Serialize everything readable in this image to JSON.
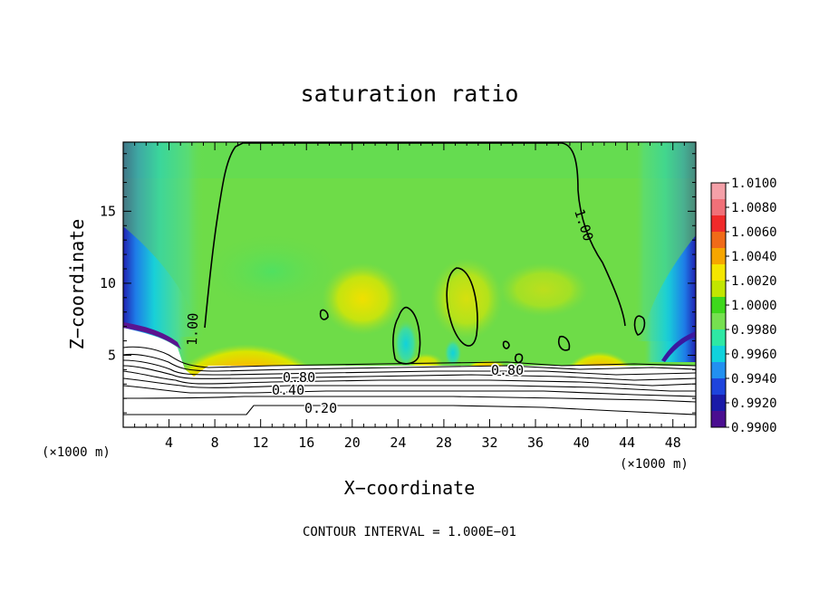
{
  "chart_data": {
    "type": "heatmap",
    "title": "saturation ratio",
    "xlabel": "X−coordinate",
    "ylabel": "Z−coordinate",
    "x_unit_label": "(×1000 m)",
    "xlim": [
      0,
      50
    ],
    "ylim": [
      0,
      19.8
    ],
    "x_ticks": [
      "4",
      "8",
      "12",
      "16",
      "20",
      "24",
      "28",
      "32",
      "36",
      "40",
      "44",
      "48"
    ],
    "y_ticks": [
      "5",
      "10",
      "15"
    ],
    "footer": "CONTOUR INTERVAL = 1.000E−01",
    "contour_labels": [
      "1.00",
      "1.00",
      "0.80",
      "0.80",
      "0.40",
      "0.20"
    ],
    "colorbar": {
      "levels": [
        "1.0100",
        "1.0080",
        "1.0060",
        "1.0040",
        "1.0020",
        "1.0000",
        "0.9980",
        "0.9960",
        "0.9940",
        "0.9920",
        "0.9900"
      ],
      "range": [
        0.99,
        1.01
      ],
      "colors": [
        "#f4a0a8",
        "#f07078",
        "#f02a2a",
        "#f06a18",
        "#f6a600",
        "#f4e600",
        "#c2e600",
        "#3ed81c",
        "#76e050",
        "#2ee8a4",
        "#10d2dc",
        "#2290f0",
        "#1e44dc",
        "#1a1aa8",
        "#4a0e90"
      ]
    },
    "colors": {
      "background_field": "#78e05a",
      "main_green": "#6edc48",
      "low_white": "#ffffff"
    }
  }
}
